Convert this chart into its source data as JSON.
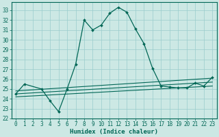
{
  "xlabel": "Humidex (Indice chaleur)",
  "bg_color": "#cce8e4",
  "line_color": "#006655",
  "grid_color": "#99cccc",
  "xlim": [
    -0.5,
    23.5
  ],
  "ylim": [
    22,
    33.8
  ],
  "xticks": [
    0,
    1,
    2,
    3,
    4,
    5,
    6,
    7,
    8,
    9,
    10,
    11,
    12,
    13,
    14,
    15,
    16,
    17,
    18,
    19,
    20,
    21,
    22,
    23
  ],
  "yticks": [
    22,
    23,
    24,
    25,
    26,
    27,
    28,
    29,
    30,
    31,
    32,
    33
  ],
  "main_curve_x": [
    0,
    1,
    3,
    4,
    5,
    6,
    7,
    8,
    9,
    10,
    11,
    12,
    13,
    14,
    15,
    16,
    17,
    18,
    19,
    20,
    21,
    22,
    23
  ],
  "main_curve_y": [
    24.5,
    25.5,
    25.0,
    23.8,
    22.7,
    25.0,
    27.5,
    32.0,
    31.0,
    31.5,
    32.7,
    33.3,
    32.8,
    31.1,
    29.6,
    27.1,
    25.3,
    25.2,
    25.1,
    25.1,
    25.6,
    25.3,
    26.2
  ],
  "line1_x": [
    0,
    23
  ],
  "line1_y": [
    24.2,
    25.3
  ],
  "line2_x": [
    0,
    23
  ],
  "line2_y": [
    24.5,
    25.7
  ],
  "line3_x": [
    0,
    23
  ],
  "line3_y": [
    24.8,
    26.1
  ],
  "xlabel_fontsize": 6.5,
  "tick_fontsize": 5.5
}
